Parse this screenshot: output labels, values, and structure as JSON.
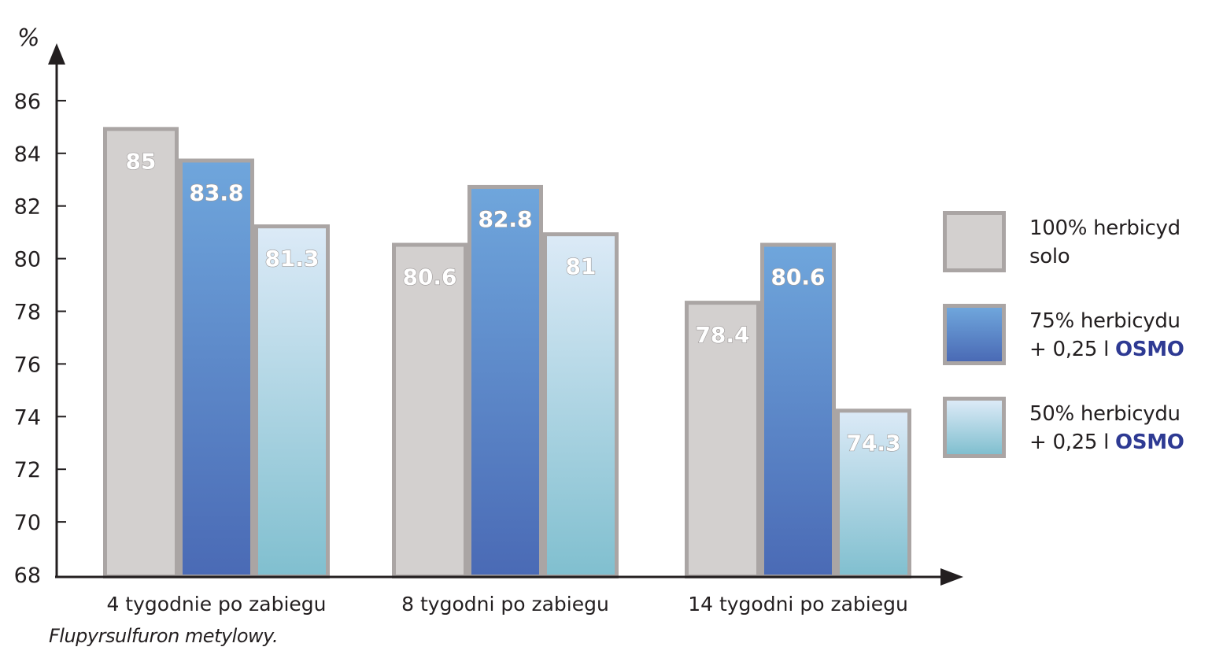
{
  "chart_data": {
    "type": "bar",
    "ylabel": "%",
    "ylim": [
      68,
      87
    ],
    "yticks": [
      68,
      70,
      72,
      74,
      76,
      78,
      80,
      82,
      84,
      86
    ],
    "categories": [
      "4 tygodnie po zabiegu",
      "8 tygodni po zabiegu",
      "14 tygodni po zabiegu"
    ],
    "series": [
      {
        "name": "100% herbicyd solo",
        "values": [
          85,
          80.6,
          78.4
        ],
        "labels": [
          "85",
          "80.6",
          "78.4"
        ],
        "color": "#d3d0cf"
      },
      {
        "name": "75% herbicydu + 0,25 l OSMO",
        "values": [
          83.8,
          82.8,
          80.6
        ],
        "labels": [
          "83.8",
          "82.8",
          "80.6"
        ],
        "color": "#4a6fb8"
      },
      {
        "name": "50% herbicydu + 0,25 l OSMO",
        "values": [
          81.3,
          81,
          74.3
        ],
        "labels": [
          "81.3",
          "81",
          "74.3"
        ],
        "color": "#86c3d3"
      }
    ],
    "legend_position": "right",
    "grid": false,
    "footnote": "Flupyrsulfuron metylowy."
  },
  "legend": [
    {
      "line1": "100% herbicyd",
      "line2": "solo",
      "brand": ""
    },
    {
      "line1": "75% herbicydu",
      "line2": "+ 0,25 l ",
      "brand": "OSMO"
    },
    {
      "line1": "50% herbicydu",
      "line2": "+ 0,25 l ",
      "brand": "OSMO"
    }
  ]
}
